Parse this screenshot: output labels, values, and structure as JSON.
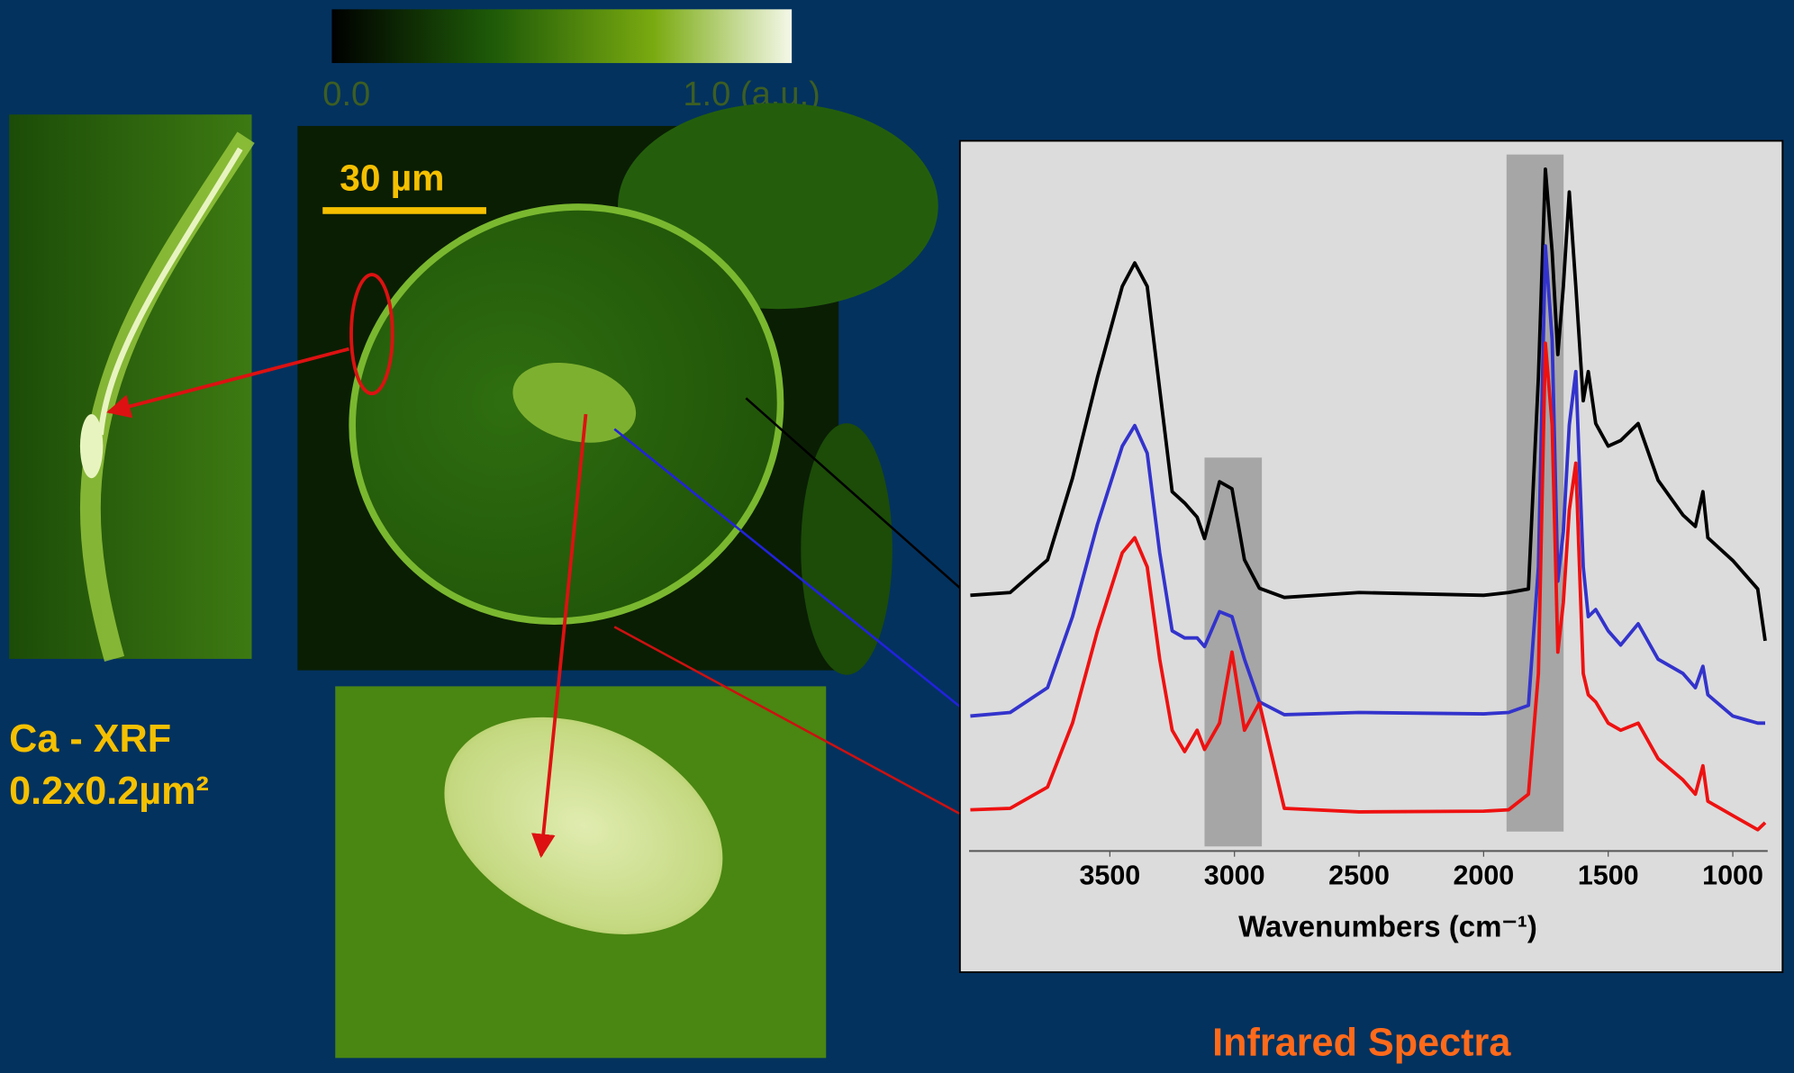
{
  "colorbar": {
    "min_label": "0.0",
    "max_label": "1.0 (a.u.)"
  },
  "scale_bar": "30 µm",
  "caption": {
    "line1": "Ca - XRF",
    "line2": "0.2x0.2µm²"
  },
  "footer": "Infrared Spectra",
  "chart_data": {
    "type": "line",
    "xlabel": "Wavenumbers (cm⁻¹)",
    "x": [
      4060,
      3900,
      3750,
      3650,
      3550,
      3450,
      3400,
      3350,
      3300,
      3250,
      3200,
      3150,
      3120,
      3060,
      3010,
      2960,
      2900,
      2800,
      2500,
      2000,
      1900,
      1820,
      1780,
      1752,
      1725,
      1702,
      1680,
      1656,
      1630,
      1600,
      1580,
      1550,
      1500,
      1450,
      1380,
      1300,
      1200,
      1150,
      1120,
      1100,
      1000,
      900,
      870
    ],
    "series": [
      {
        "color": "#000000",
        "values": [
          36,
          36.4,
          41,
          52.5,
          66.7,
          79.5,
          82.8,
          79.5,
          65,
          50.6,
          49,
          47,
          44,
          52,
          51,
          41,
          37,
          35.7,
          36.4,
          36,
          36.4,
          36.9,
          66.7,
          96,
          84.4,
          69.9,
          79.5,
          92.8,
          79.5,
          63.4,
          67.5,
          60.2,
          57,
          57.8,
          60.2,
          52.2,
          47.3,
          45.7,
          50.6,
          44.1,
          40.9,
          36.9,
          29.6
        ]
      },
      {
        "color": "#3333cc",
        "values": [
          19,
          19.5,
          23,
          33,
          46,
          57,
          59.9,
          56,
          42,
          31,
          30,
          30,
          28.8,
          33.7,
          33,
          27,
          21,
          19.2,
          19.5,
          19.3,
          19.5,
          20.5,
          40,
          85.2,
          72,
          38,
          45,
          60,
          67.5,
          40,
          33,
          34,
          31,
          29,
          32,
          27,
          25,
          23,
          26,
          22,
          19,
          18,
          18
        ]
      },
      {
        "color": "#ee1111",
        "values": [
          5.8,
          6,
          9,
          18,
          31,
          42,
          44.1,
          40,
          27,
          17,
          14,
          17,
          14.3,
          18,
          28,
          17,
          20.8,
          6,
          5.5,
          5.6,
          5.8,
          8,
          25,
          71.5,
          60,
          28,
          35,
          48,
          54.6,
          25,
          22,
          21,
          18,
          17,
          18,
          13,
          10,
          8,
          12,
          7,
          5,
          3,
          4
        ]
      }
    ],
    "bands": [
      [
        3120,
        2890
      ],
      [
        1908,
        1679
      ]
    ],
    "xlim": [
      4065,
      860
    ],
    "ylim": [
      0,
      100
    ],
    "xticks": [
      3500,
      3000,
      2500,
      2000,
      1500,
      1000
    ]
  }
}
